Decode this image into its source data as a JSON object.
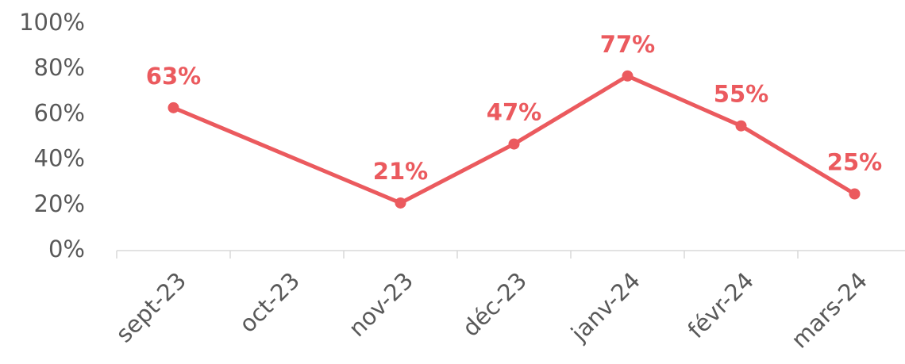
{
  "chart_data": {
    "type": "line",
    "categories": [
      "sept-23",
      "oct-23",
      "nov-23",
      "déc-23",
      "janv-24",
      "févr-24",
      "mars-24"
    ],
    "series": [
      {
        "name": null,
        "color": "#eb5a5e",
        "values": [
          63,
          null,
          21,
          47,
          77,
          55,
          25
        ],
        "value_labels": [
          "63%",
          null,
          "21%",
          "47%",
          "77%",
          "55%",
          "25%"
        ]
      }
    ],
    "connect_gaps": true,
    "ylim": [
      0,
      100
    ],
    "yticks": [
      {
        "value": 0,
        "label": "0%"
      },
      {
        "value": 20,
        "label": "20%"
      },
      {
        "value": 40,
        "label": "40%"
      },
      {
        "value": 60,
        "label": "60%"
      },
      {
        "value": 80,
        "label": "80%"
      },
      {
        "value": 100,
        "label": "100%"
      }
    ],
    "grid": false
  }
}
